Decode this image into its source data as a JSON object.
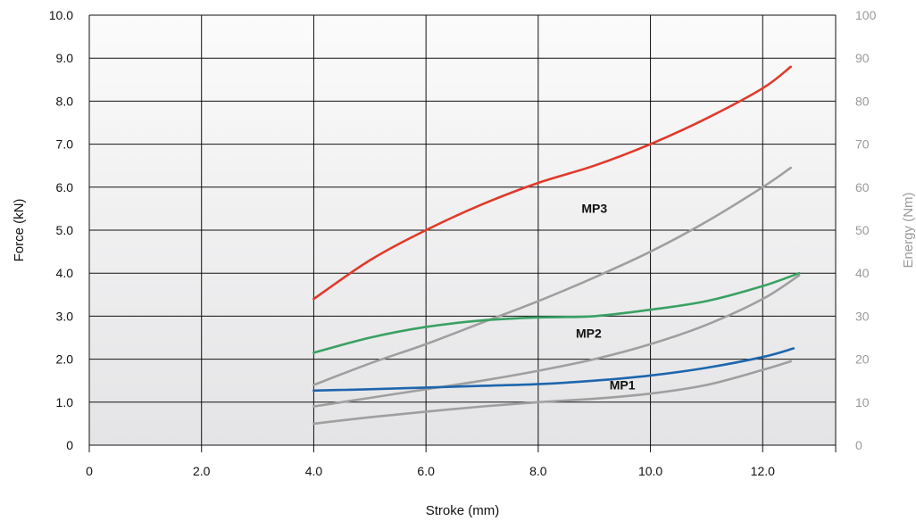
{
  "chart_data": {
    "type": "line",
    "title": "",
    "xlabel": "Stroke (mm)",
    "ylabel": "Force (kN)",
    "y2label": "Energy (Nm)",
    "xlim": [
      0,
      13.3
    ],
    "ylim": [
      0,
      10
    ],
    "y2lim": [
      0,
      100
    ],
    "grid": true,
    "x_ticks": [
      {
        "value": 0,
        "label": "0"
      },
      {
        "value": 2,
        "label": "2.0"
      },
      {
        "value": 4,
        "label": "4.0"
      },
      {
        "value": 6,
        "label": "6.0"
      },
      {
        "value": 8,
        "label": "8.0"
      },
      {
        "value": 10,
        "label": "10.0"
      },
      {
        "value": 12,
        "label": "12.0"
      }
    ],
    "y_ticks": [
      {
        "value": 0,
        "label": "0"
      },
      {
        "value": 1,
        "label": "1.0"
      },
      {
        "value": 2,
        "label": "2.0"
      },
      {
        "value": 3,
        "label": "3.0"
      },
      {
        "value": 4,
        "label": "4.0"
      },
      {
        "value": 5,
        "label": "5.0"
      },
      {
        "value": 6,
        "label": "6.0"
      },
      {
        "value": 7,
        "label": "7.0"
      },
      {
        "value": 8,
        "label": "8.0"
      },
      {
        "value": 9,
        "label": "9.0"
      },
      {
        "value": 10,
        "label": "10.0"
      }
    ],
    "y2_ticks": [
      {
        "value": 0,
        "label": "0"
      },
      {
        "value": 10,
        "label": "10"
      },
      {
        "value": 20,
        "label": "20"
      },
      {
        "value": 30,
        "label": "30"
      },
      {
        "value": 40,
        "label": "40"
      },
      {
        "value": 50,
        "label": "50"
      },
      {
        "value": 60,
        "label": "60"
      },
      {
        "value": 70,
        "label": "70"
      },
      {
        "value": 80,
        "label": "80"
      },
      {
        "value": 90,
        "label": "90"
      },
      {
        "value": 100,
        "label": "100"
      }
    ],
    "series": [
      {
        "name": "MP3",
        "axis": "force",
        "color": "#e03a2a",
        "x": [
          4.0,
          5.0,
          6.0,
          7.0,
          8.0,
          9.0,
          10.0,
          11.0,
          12.0,
          12.5
        ],
        "values": [
          3.4,
          4.3,
          5.0,
          5.6,
          6.1,
          6.5,
          7.0,
          7.6,
          8.3,
          8.8
        ]
      },
      {
        "name": "MP3",
        "axis": "energy",
        "color": "#9f9f9f",
        "x": [
          4.0,
          5.0,
          6.0,
          7.0,
          8.0,
          9.0,
          10.0,
          11.0,
          12.0,
          12.5
        ],
        "values": [
          14,
          19,
          23.5,
          28.5,
          33.5,
          39,
          45,
          52,
          60,
          64.5
        ]
      },
      {
        "name": "MP2",
        "axis": "force",
        "color": "#3aa163",
        "x": [
          4.0,
          5.0,
          6.0,
          7.0,
          8.0,
          9.0,
          10.0,
          11.0,
          12.0,
          12.65
        ],
        "values": [
          2.15,
          2.5,
          2.75,
          2.9,
          2.97,
          3.0,
          3.15,
          3.35,
          3.7,
          4.0
        ]
      },
      {
        "name": "MP2",
        "axis": "energy",
        "color": "#9f9f9f",
        "x": [
          4.0,
          5.0,
          6.0,
          7.0,
          8.0,
          9.0,
          10.0,
          11.0,
          12.0,
          12.65
        ],
        "values": [
          9,
          11,
          13,
          15,
          17.3,
          20,
          23.5,
          28,
          34,
          39.5
        ]
      },
      {
        "name": "MP1",
        "axis": "force",
        "color": "#1e66ad",
        "x": [
          4.0,
          5.0,
          6.0,
          7.0,
          8.0,
          9.0,
          10.0,
          11.0,
          12.0,
          12.55
        ],
        "values": [
          1.27,
          1.3,
          1.34,
          1.38,
          1.42,
          1.5,
          1.62,
          1.8,
          2.05,
          2.25
        ]
      },
      {
        "name": "MP1",
        "axis": "energy",
        "color": "#9f9f9f",
        "x": [
          4.0,
          5.0,
          6.0,
          7.0,
          8.0,
          9.0,
          10.0,
          11.0,
          12.0,
          12.5
        ],
        "values": [
          5,
          6.5,
          7.8,
          9,
          10,
          10.8,
          12,
          14,
          17.5,
          19.5
        ]
      }
    ],
    "annotations": [
      {
        "text": "MP3",
        "x": 9.0,
        "y": 5.4
      },
      {
        "text": "MP2",
        "x": 8.9,
        "y": 2.5
      },
      {
        "text": "MP1",
        "x": 9.5,
        "y": 1.3
      }
    ]
  }
}
